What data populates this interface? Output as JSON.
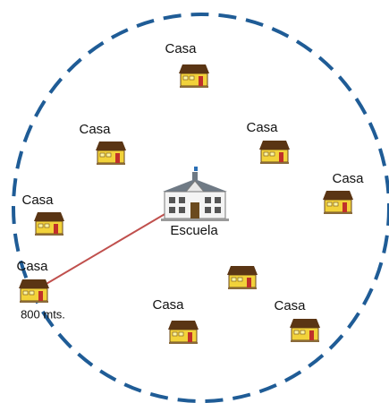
{
  "school": {
    "label": "Escuela"
  },
  "houses": [
    {
      "label": "Casa"
    },
    {
      "label": "Casa"
    },
    {
      "label": "Casa"
    },
    {
      "label": "Casa"
    },
    {
      "label": "Casa"
    },
    {
      "label": "Casa"
    },
    {
      "label": "Casa"
    },
    {
      "label": "Casa"
    }
  ],
  "distance_label": "800 mts."
}
